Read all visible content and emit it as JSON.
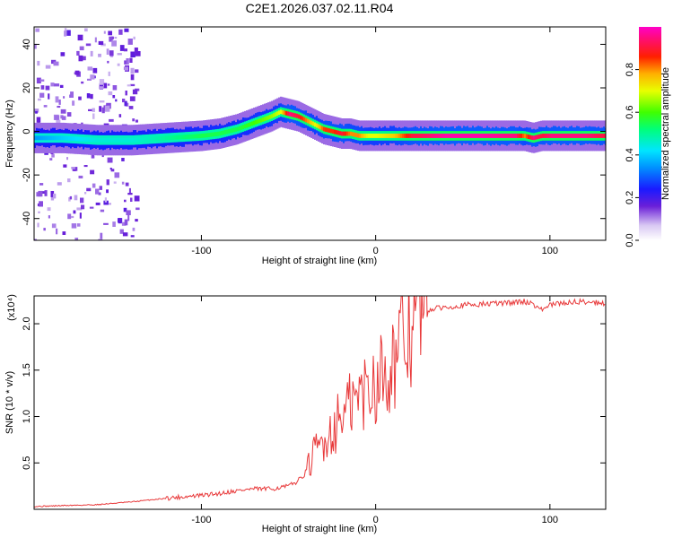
{
  "title": "C2E1.2026.037.02.11.R04",
  "chart_data": [
    {
      "type": "heatmap",
      "xlabel": "Height of straight line (km)",
      "ylabel": "Frequency (Hz)",
      "xlim": [
        -196,
        132
      ],
      "ylim": [
        -50,
        48
      ],
      "x_ticks": [
        -100,
        0,
        100
      ],
      "y_ticks": [
        -40,
        -20,
        0,
        20,
        40
      ],
      "colorbar": {
        "label": "Normalized spectral amplitude",
        "range": [
          0.0,
          1.0
        ],
        "ticks": [
          0.0,
          0.2,
          0.4,
          0.6,
          0.8
        ],
        "tick_labels": [
          "0.0",
          "0.2",
          "0.4",
          "0.6",
          "0.8"
        ]
      },
      "ridge": {
        "description_of_values": "center frequency of the dominant spectral ridge vs height",
        "x": [
          -196,
          -180,
          -160,
          -140,
          -120,
          -100,
          -90,
          -80,
          -70,
          -60,
          -55,
          -50,
          -45,
          -40,
          -35,
          -30,
          -25,
          -20,
          -15,
          -10,
          -5,
          0,
          10,
          20,
          40,
          60,
          80,
          85,
          90,
          95,
          100,
          120,
          132
        ],
        "y": [
          -3,
          -3,
          -4,
          -4,
          -3,
          -2,
          -1,
          1,
          4,
          7,
          9,
          8,
          7,
          5,
          3,
          1,
          0,
          -1,
          -1,
          -2,
          -2,
          -2,
          -2,
          -2,
          -2,
          -2,
          -2,
          -2,
          -3,
          -2,
          -2,
          -2,
          -2
        ],
        "amplitude": [
          0.35,
          0.4,
          0.45,
          0.45,
          0.5,
          0.55,
          0.55,
          0.55,
          0.6,
          0.65,
          0.7,
          0.95,
          0.9,
          0.8,
          0.7,
          0.85,
          0.85,
          0.9,
          0.8,
          0.8,
          0.7,
          0.7,
          0.75,
          0.9,
          0.98,
          0.98,
          0.95,
          0.8,
          0.95,
          0.9,
          0.95,
          0.95,
          0.9
        ]
      }
    },
    {
      "type": "line",
      "xlabel": "Height of straight line (km)",
      "ylabel": "SNR (10 * v/v)",
      "y_multiplier": "(x10⁴)",
      "xlim": [
        -196,
        132
      ],
      "ylim": [
        0,
        2.3
      ],
      "x_ticks": [
        -100,
        0,
        100
      ],
      "y_ticks": [
        0.5,
        1.0,
        1.5,
        2.0
      ],
      "y_tick_labels": [
        "0.5",
        "1.0",
        "1.5",
        "2.0"
      ],
      "series": [
        {
          "color": "#e8393a",
          "x": [
            -196,
            -180,
            -160,
            -140,
            -120,
            -100,
            -90,
            -80,
            -70,
            -60,
            -50,
            -45,
            -40,
            -35,
            -30,
            -25,
            -20,
            -15,
            -10,
            -5,
            0,
            5,
            10,
            15,
            20,
            25,
            30,
            40,
            50,
            60,
            70,
            80,
            85,
            90,
            95,
            100,
            110,
            120,
            132
          ],
          "y": [
            0.03,
            0.04,
            0.05,
            0.08,
            0.12,
            0.15,
            0.17,
            0.2,
            0.22,
            0.22,
            0.25,
            0.3,
            0.4,
            0.6,
            0.75,
            0.85,
            1.0,
            1.1,
            1.2,
            1.3,
            1.4,
            1.5,
            1.6,
            1.75,
            1.95,
            2.08,
            2.15,
            2.18,
            2.2,
            2.21,
            2.22,
            2.23,
            2.24,
            2.22,
            2.15,
            2.2,
            2.23,
            2.24,
            2.22
          ]
        }
      ]
    }
  ]
}
